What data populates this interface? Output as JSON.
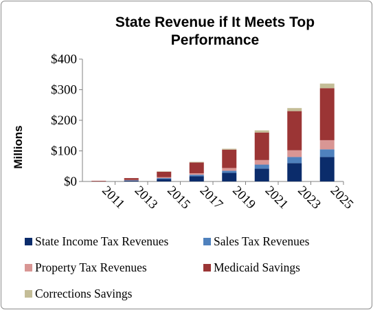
{
  "chart_data": {
    "type": "bar",
    "stacked": true,
    "title": "State Revenue if It Meets Top Performance",
    "title_lines": [
      "State Revenue if It Meets Top",
      "Performance"
    ],
    "ylabel": "Millions",
    "xlabel": "",
    "ylim": [
      0,
      400
    ],
    "yticks": [
      0,
      100,
      200,
      300,
      400
    ],
    "ytick_labels": [
      "$0",
      "$100",
      "$200",
      "$300",
      "$400"
    ],
    "categories": [
      "2011",
      "2013",
      "2015",
      "2017",
      "2019",
      "2021",
      "2023",
      "2025"
    ],
    "series": [
      {
        "name": "State Income Tax Revenues",
        "color": "#0b2c6b",
        "values": [
          0,
          3,
          8,
          17,
          28,
          42,
          60,
          80
        ]
      },
      {
        "name": "Sales Tax Revenues",
        "color": "#4f81bd",
        "values": [
          0,
          1,
          3,
          5,
          7,
          13,
          20,
          25
        ]
      },
      {
        "name": "Property Tax Revenues",
        "color": "#d99694",
        "values": [
          0,
          1,
          3,
          5,
          9,
          15,
          22,
          30
        ]
      },
      {
        "name": "Medicaid Savings",
        "color": "#9b3535",
        "values": [
          2,
          6,
          18,
          35,
          60,
          90,
          128,
          170
        ]
      },
      {
        "name": "Corrections Savings",
        "color": "#c4bd97",
        "values": [
          0,
          0,
          1,
          2,
          3,
          7,
          10,
          15
        ]
      }
    ],
    "grid": false,
    "legend_position": "bottom"
  }
}
